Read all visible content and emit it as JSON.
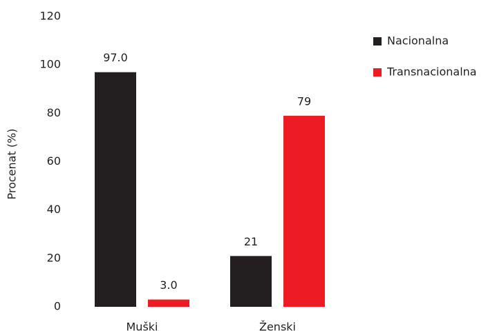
{
  "chart_data": {
    "type": "bar",
    "y_label": "Procenat (%)",
    "categories": [
      "Muški",
      "Ženski"
    ],
    "series": [
      {
        "name": "Nacionalna",
        "color": "#231f20",
        "values": [
          97.0,
          21
        ],
        "value_labels": [
          "97.0",
          "21"
        ]
      },
      {
        "name": "Transnacionalna",
        "color": "#ed1c24",
        "values": [
          3.0,
          79
        ],
        "value_labels": [
          "3.0",
          "79"
        ]
      }
    ],
    "ylim": [
      0,
      120
    ],
    "yticks": [
      0,
      20,
      40,
      60,
      80,
      100,
      120
    ],
    "grid": false
  }
}
